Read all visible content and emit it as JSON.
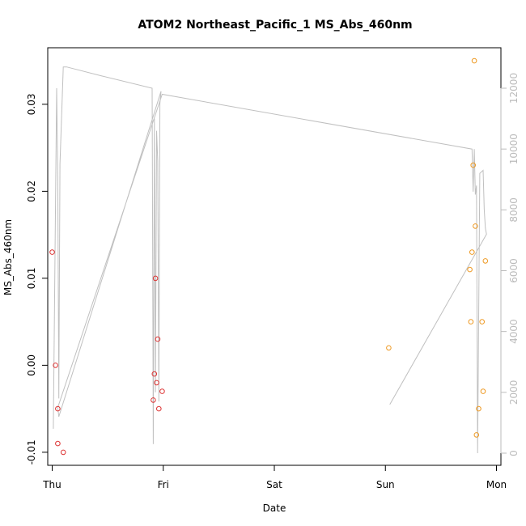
{
  "chart_data": {
    "type": "scatter",
    "title": "ATOM2 Northeast_Pacific_1 MS_Abs_460nm",
    "xlabel": "Date",
    "ylabel": "MS_Abs_460nm",
    "x_ticks": [
      {
        "day": 0,
        "label": "Thu"
      },
      {
        "day": 1,
        "label": "Fri"
      },
      {
        "day": 2,
        "label": "Sat"
      },
      {
        "day": 3,
        "label": "Sun"
      },
      {
        "day": 4,
        "label": "Mon"
      }
    ],
    "y_ticks": [
      -0.01,
      0.0,
      0.01,
      0.02,
      0.03
    ],
    "y_tick_labels": [
      "-0.01",
      "0.00",
      "0.01",
      "0.02",
      "0.03"
    ],
    "y2_ticks": [
      0,
      2000,
      4000,
      6000,
      8000,
      10000,
      12000
    ],
    "y2_tick_labels": [
      "0",
      "2000",
      "4000",
      "6000",
      "8000",
      "10000",
      "12000"
    ],
    "xlim": [
      -0.04,
      4.04
    ],
    "ylim": [
      -0.0115,
      0.0365
    ],
    "y2lim": [
      -0.0115,
      0.0365
    ],
    "series": [
      {
        "color": "#dd3333",
        "marker": "circle-open",
        "points": [
          {
            "x": 0.0,
            "y": 0.013
          },
          {
            "x": 0.03,
            "y": 0.0
          },
          {
            "x": 0.05,
            "y": -0.005
          },
          {
            "x": 0.05,
            "y": -0.009
          },
          {
            "x": 0.1,
            "y": -0.01
          },
          {
            "x": 0.91,
            "y": -0.004
          },
          {
            "x": 0.92,
            "y": -0.001
          },
          {
            "x": 0.93,
            "y": 0.01
          },
          {
            "x": 0.94,
            "y": -0.002
          },
          {
            "x": 0.95,
            "y": 0.003
          },
          {
            "x": 0.96,
            "y": -0.005
          },
          {
            "x": 0.99,
            "y": -0.003
          }
        ]
      },
      {
        "color": "#ee9922",
        "marker": "circle-open",
        "points": [
          {
            "x": 3.03,
            "y": 0.002
          },
          {
            "x": 3.76,
            "y": 0.011
          },
          {
            "x": 3.77,
            "y": 0.005
          },
          {
            "x": 3.78,
            "y": 0.013
          },
          {
            "x": 3.79,
            "y": 0.023
          },
          {
            "x": 3.8,
            "y": 0.035
          },
          {
            "x": 3.81,
            "y": 0.016
          },
          {
            "x": 3.82,
            "y": -0.008
          },
          {
            "x": 3.84,
            "y": -0.005
          },
          {
            "x": 3.87,
            "y": 0.005
          },
          {
            "x": 3.88,
            "y": -0.003
          },
          {
            "x": 3.9,
            "y": 0.012
          }
        ]
      }
    ],
    "trajectory": {
      "color": "#c0c0c0",
      "axis": "right",
      "points": [
        {
          "x": 0.01,
          "y2": 800
        },
        {
          "x": 0.04,
          "y2": 12000
        },
        {
          "x": 0.05,
          "y2": 9000
        },
        {
          "x": 0.06,
          "y2": 1800
        },
        {
          "x": 0.07,
          "y2": 9500
        },
        {
          "x": 0.1,
          "y2": 12700
        },
        {
          "x": 0.13,
          "y2": 12700
        },
        {
          "x": 0.45,
          "y2": 12400
        },
        {
          "x": 0.9,
          "y2": 12000
        },
        {
          "x": 0.91,
          "y2": 300
        },
        {
          "x": 0.92,
          "y2": 11000
        },
        {
          "x": 0.93,
          "y2": 2000
        },
        {
          "x": 0.94,
          "y2": 10600
        },
        {
          "x": 0.95,
          "y2": 9600
        },
        {
          "x": 0.96,
          "y2": 1700
        },
        {
          "x": 0.97,
          "y2": 11500
        },
        {
          "x": 0.98,
          "y2": 11900
        },
        {
          "x": 0.06,
          "y2": 1200
        },
        {
          "x": 0.05,
          "y2": 1500
        },
        {
          "x": 0.99,
          "y2": 11800
        },
        {
          "x": 3.78,
          "y2": 10000
        },
        {
          "x": 3.79,
          "y2": 8600
        },
        {
          "x": 3.8,
          "y2": 10000
        },
        {
          "x": 3.81,
          "y2": 8500
        },
        {
          "x": 3.82,
          "y2": 8800
        },
        {
          "x": 3.83,
          "y2": 0
        },
        {
          "x": 3.85,
          "y2": 9200
        },
        {
          "x": 3.88,
          "y2": 9300
        },
        {
          "x": 3.89,
          "y2": 8000
        },
        {
          "x": 3.9,
          "y2": 7400
        },
        {
          "x": 3.91,
          "y2": 7200
        },
        {
          "x": 3.04,
          "y2": 1600
        }
      ]
    },
    "grid": false,
    "legend": "none"
  }
}
